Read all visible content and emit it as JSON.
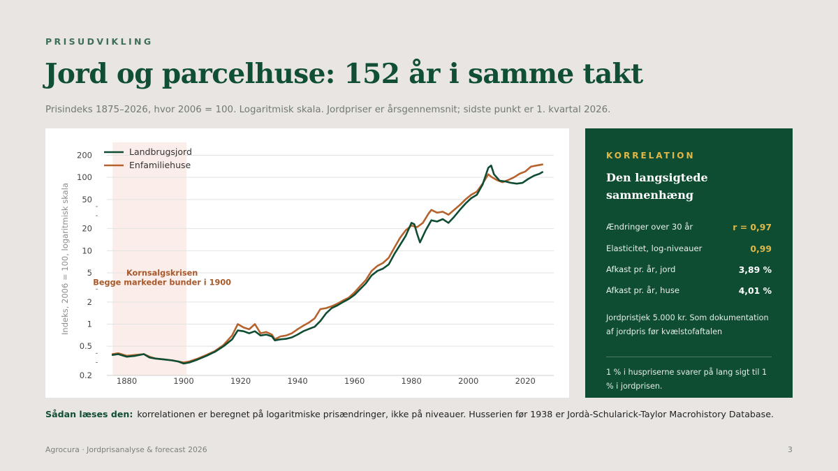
{
  "header": {
    "eyebrow": "PRISUDVIKLING",
    "title": "Jord og parcelhuse: 152 år i samme takt",
    "subtitle": "Prisindeks 1875–2026, hvor 2006 = 100. Logaritmisk skala. Jordpriser er årsgennemsnit; sidste punkt er 1. kvartal 2026."
  },
  "colors": {
    "land": "#0f4d33",
    "houses": "#b5622c",
    "crisis_band": "#fbeeea",
    "accent": "#e0b84a"
  },
  "chart_data": {
    "type": "line",
    "title": "",
    "ylabel": "Indeks, 2006 = 100, logaritmisk skala",
    "xlabel": "",
    "y_scale": "log",
    "xlim": [
      1873,
      2030
    ],
    "ylim": [
      0.2,
      300
    ],
    "x_ticks": [
      1880,
      1900,
      1920,
      1940,
      1960,
      1980,
      2000,
      2020
    ],
    "y_ticks": [
      0.2,
      0.5,
      1,
      2,
      5,
      10,
      20,
      50,
      100,
      200
    ],
    "y_tick_labels": [
      "0.2",
      "0.5",
      "1",
      "2",
      "5",
      "10",
      "20",
      "50",
      "100",
      "200"
    ],
    "grid": "horizontal",
    "legend_position": "top-left",
    "shaded_region": {
      "x_start": 1875,
      "x_end": 1901
    },
    "annotation": {
      "line1": "Kornsalgskrisen",
      "line2": "Begge markeder bunder i 1900"
    },
    "series": [
      {
        "name": "Landbrugsjord",
        "color": "#0f4d33",
        "points": [
          [
            1875,
            0.38
          ],
          [
            1877,
            0.39
          ],
          [
            1880,
            0.36
          ],
          [
            1883,
            0.37
          ],
          [
            1886,
            0.39
          ],
          [
            1888,
            0.35
          ],
          [
            1890,
            0.34
          ],
          [
            1893,
            0.33
          ],
          [
            1896,
            0.32
          ],
          [
            1898,
            0.31
          ],
          [
            1900,
            0.29
          ],
          [
            1902,
            0.3
          ],
          [
            1905,
            0.33
          ],
          [
            1908,
            0.37
          ],
          [
            1911,
            0.42
          ],
          [
            1914,
            0.5
          ],
          [
            1917,
            0.62
          ],
          [
            1919,
            0.82
          ],
          [
            1921,
            0.8
          ],
          [
            1923,
            0.75
          ],
          [
            1925,
            0.8
          ],
          [
            1927,
            0.7
          ],
          [
            1929,
            0.72
          ],
          [
            1931,
            0.68
          ],
          [
            1932,
            0.6
          ],
          [
            1934,
            0.62
          ],
          [
            1936,
            0.63
          ],
          [
            1938,
            0.66
          ],
          [
            1940,
            0.72
          ],
          [
            1942,
            0.8
          ],
          [
            1944,
            0.86
          ],
          [
            1946,
            0.92
          ],
          [
            1948,
            1.1
          ],
          [
            1950,
            1.4
          ],
          [
            1952,
            1.65
          ],
          [
            1954,
            1.8
          ],
          [
            1956,
            2.0
          ],
          [
            1958,
            2.2
          ],
          [
            1960,
            2.5
          ],
          [
            1962,
            3.0
          ],
          [
            1964,
            3.6
          ],
          [
            1966,
            4.6
          ],
          [
            1968,
            5.3
          ],
          [
            1970,
            5.7
          ],
          [
            1972,
            6.5
          ],
          [
            1974,
            9
          ],
          [
            1976,
            12
          ],
          [
            1978,
            16
          ],
          [
            1980,
            24
          ],
          [
            1981,
            23
          ],
          [
            1982,
            17
          ],
          [
            1983,
            13
          ],
          [
            1985,
            19
          ],
          [
            1987,
            26
          ],
          [
            1989,
            25
          ],
          [
            1991,
            27
          ],
          [
            1993,
            24
          ],
          [
            1995,
            29
          ],
          [
            1997,
            36
          ],
          [
            1999,
            44
          ],
          [
            2001,
            52
          ],
          [
            2003,
            58
          ],
          [
            2005,
            80
          ],
          [
            2007,
            135
          ],
          [
            2008,
            145
          ],
          [
            2009,
            110
          ],
          [
            2011,
            90
          ],
          [
            2013,
            88
          ],
          [
            2015,
            84
          ],
          [
            2017,
            82
          ],
          [
            2019,
            84
          ],
          [
            2021,
            95
          ],
          [
            2023,
            105
          ],
          [
            2025,
            112
          ],
          [
            2026,
            118
          ]
        ]
      },
      {
        "name": "Enfamiliehuse",
        "color": "#b5622c",
        "points": [
          [
            1875,
            0.39
          ],
          [
            1877,
            0.4
          ],
          [
            1880,
            0.37
          ],
          [
            1883,
            0.38
          ],
          [
            1886,
            0.39
          ],
          [
            1888,
            0.36
          ],
          [
            1890,
            0.34
          ],
          [
            1893,
            0.33
          ],
          [
            1896,
            0.32
          ],
          [
            1898,
            0.31
          ],
          [
            1900,
            0.3
          ],
          [
            1902,
            0.31
          ],
          [
            1905,
            0.34
          ],
          [
            1908,
            0.38
          ],
          [
            1911,
            0.43
          ],
          [
            1914,
            0.52
          ],
          [
            1917,
            0.7
          ],
          [
            1919,
            1.0
          ],
          [
            1921,
            0.9
          ],
          [
            1923,
            0.85
          ],
          [
            1925,
            1.0
          ],
          [
            1927,
            0.75
          ],
          [
            1929,
            0.78
          ],
          [
            1931,
            0.72
          ],
          [
            1932,
            0.62
          ],
          [
            1934,
            0.68
          ],
          [
            1936,
            0.7
          ],
          [
            1938,
            0.75
          ],
          [
            1940,
            0.85
          ],
          [
            1942,
            0.95
          ],
          [
            1944,
            1.05
          ],
          [
            1946,
            1.2
          ],
          [
            1948,
            1.6
          ],
          [
            1950,
            1.65
          ],
          [
            1952,
            1.75
          ],
          [
            1954,
            1.9
          ],
          [
            1956,
            2.1
          ],
          [
            1958,
            2.3
          ],
          [
            1960,
            2.7
          ],
          [
            1962,
            3.3
          ],
          [
            1964,
            4.0
          ],
          [
            1966,
            5.3
          ],
          [
            1968,
            6.2
          ],
          [
            1970,
            6.8
          ],
          [
            1972,
            8
          ],
          [
            1974,
            11
          ],
          [
            1976,
            15
          ],
          [
            1978,
            19
          ],
          [
            1980,
            22
          ],
          [
            1982,
            21
          ],
          [
            1984,
            24
          ],
          [
            1986,
            32
          ],
          [
            1987,
            36
          ],
          [
            1989,
            33
          ],
          [
            1991,
            34
          ],
          [
            1993,
            31
          ],
          [
            1995,
            36
          ],
          [
            1997,
            42
          ],
          [
            1999,
            50
          ],
          [
            2001,
            58
          ],
          [
            2003,
            64
          ],
          [
            2005,
            82
          ],
          [
            2007,
            110
          ],
          [
            2008,
            102
          ],
          [
            2010,
            92
          ],
          [
            2012,
            86
          ],
          [
            2014,
            92
          ],
          [
            2016,
            100
          ],
          [
            2018,
            112
          ],
          [
            2020,
            120
          ],
          [
            2022,
            140
          ],
          [
            2024,
            145
          ],
          [
            2026,
            150
          ]
        ]
      }
    ]
  },
  "side": {
    "kicker": "KORRELATION",
    "heading": "Den langsigtede sammenhæng",
    "stats": [
      {
        "label": "Ændringer over 30 år",
        "value": "r = 0,97"
      },
      {
        "label": "Elasticitet, log-niveauer",
        "value": "0,99"
      },
      {
        "label": "Afkast pr. år, jord",
        "value": "3,89 %"
      },
      {
        "label": "Afkast pr. år, huse",
        "value": "4,01 %"
      }
    ],
    "note": "Jordpristjek 5.000 kr. Som dokumentation af jordpris før kvælstofaftalen",
    "conclusion": "1 % i huspriserne svarer på lang sigt til 1 % i jordprisen."
  },
  "how_to": {
    "label": "Sådan læses den:",
    "text": "korrelationen er beregnet på logaritmiske prisændringer, ikke på niveauer. Husserien før 1938 er Jordà-Schularick-Taylor Macrohistory Database."
  },
  "footer": {
    "left": "Agrocura · Jordprisanalyse & forecast 2026",
    "page": "3"
  }
}
